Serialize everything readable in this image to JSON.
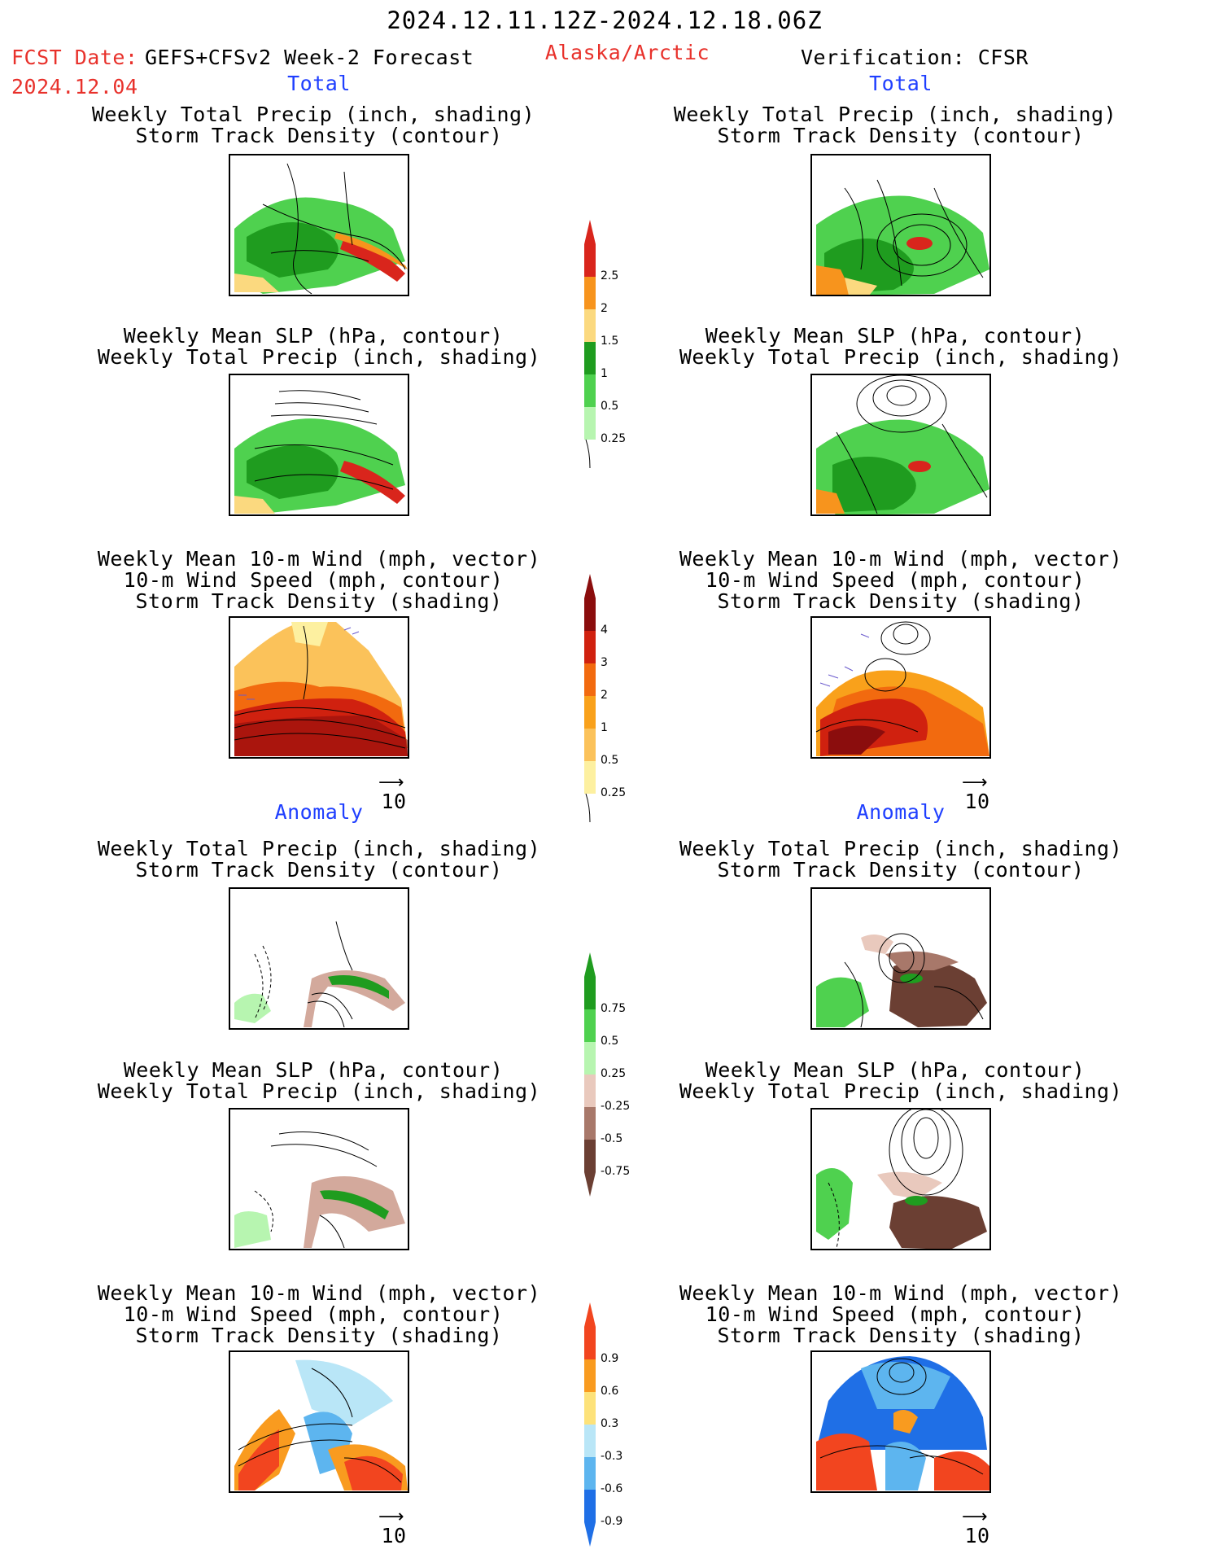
{
  "header": {
    "period": "2024.12.11.12Z-2024.12.18.06Z",
    "fcst_label": "FCST Date:",
    "model": "GEFS+CFSv2 Week-2 Forecast",
    "region": "Alaska/Arctic",
    "verification": "Verification: CFSR",
    "fcst_date": "2024.12.04"
  },
  "section_labels": {
    "total": "Total",
    "anomaly": "Anomaly"
  },
  "panel_titles": {
    "precip_track": [
      "Weekly Total Precip (inch, shading)",
      "Storm Track Density (contour)"
    ],
    "slp_precip": [
      "Weekly Mean SLP (hPa, contour)",
      "Weekly Total Precip (inch, shading)"
    ],
    "wind_track": [
      "Weekly Mean 10-m Wind (mph, vector)",
      "10-m Wind Speed (mph, contour)",
      "Storm Track Density (shading)"
    ]
  },
  "vector_ref": "10",
  "colorbars": {
    "precip_total": {
      "labels": [
        "2.5",
        "2",
        "1.5",
        "1",
        "0.5",
        "0.25"
      ],
      "colors": [
        "#d9251c",
        "#f7941d",
        "#fbd97f",
        "#1f9c1f",
        "#4fd14f",
        "#b7f5b0"
      ]
    },
    "track_total": {
      "labels": [
        "4",
        "3",
        "2",
        "1",
        "0.5",
        "0.25"
      ],
      "colors": [
        "#8b0d0d",
        "#d0210f",
        "#f26a0f",
        "#f9a11b",
        "#fbc25a",
        "#fdf0a0"
      ]
    },
    "precip_anom": {
      "labels": [
        "0.75",
        "0.5",
        "0.25",
        "-0.25",
        "-0.5",
        "-0.75"
      ],
      "colors": [
        "#1f9c1f",
        "#4fd14f",
        "#b7f5b0",
        "#e9c9bd",
        "#a8786a",
        "#6b3f33"
      ]
    },
    "track_anom": {
      "labels": [
        "0.9",
        "0.6",
        "0.3",
        "-0.3",
        "-0.6",
        "-0.9"
      ],
      "colors": [
        "#f2451f",
        "#f99b1f",
        "#fde27a",
        "#b9e6f7",
        "#5db5ef",
        "#1f6fe6"
      ]
    }
  }
}
